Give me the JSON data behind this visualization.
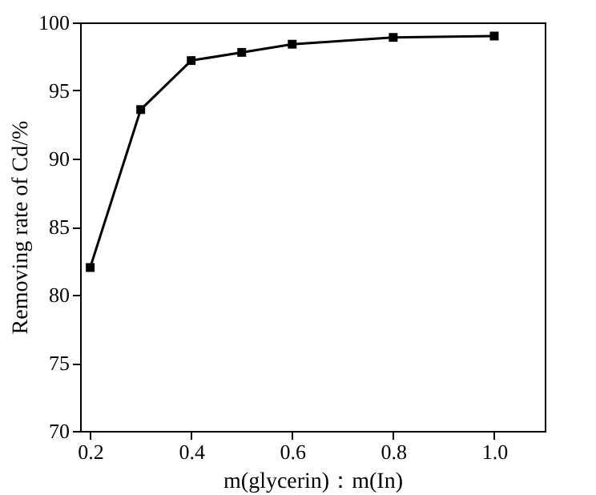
{
  "chart_data": {
    "type": "line",
    "xlabel": "m(glycerin)：m(In)",
    "ylabel": "Removing rate of Cd/%",
    "x": [
      0.2,
      0.3,
      0.4,
      0.5,
      0.6,
      0.8,
      1.0
    ],
    "series": [
      {
        "color": "#000000",
        "values": [
          82.0,
          93.6,
          97.2,
          97.8,
          98.4,
          98.9,
          99.0
        ]
      }
    ],
    "xlim": [
      0.18,
      1.1
    ],
    "xticks": [
      {
        "value": 0.2,
        "label": "0.2"
      },
      {
        "value": 0.4,
        "label": "0.4"
      },
      {
        "value": 0.6,
        "label": "0.6"
      },
      {
        "value": 0.8,
        "label": "0.8"
      },
      {
        "value": 1.0,
        "label": "1.0"
      }
    ],
    "ylim": [
      70,
      100
    ],
    "yticks": [
      70,
      75,
      80,
      85,
      90,
      95,
      100
    ],
    "grid": false,
    "marker": "square",
    "line_style": "solid"
  }
}
